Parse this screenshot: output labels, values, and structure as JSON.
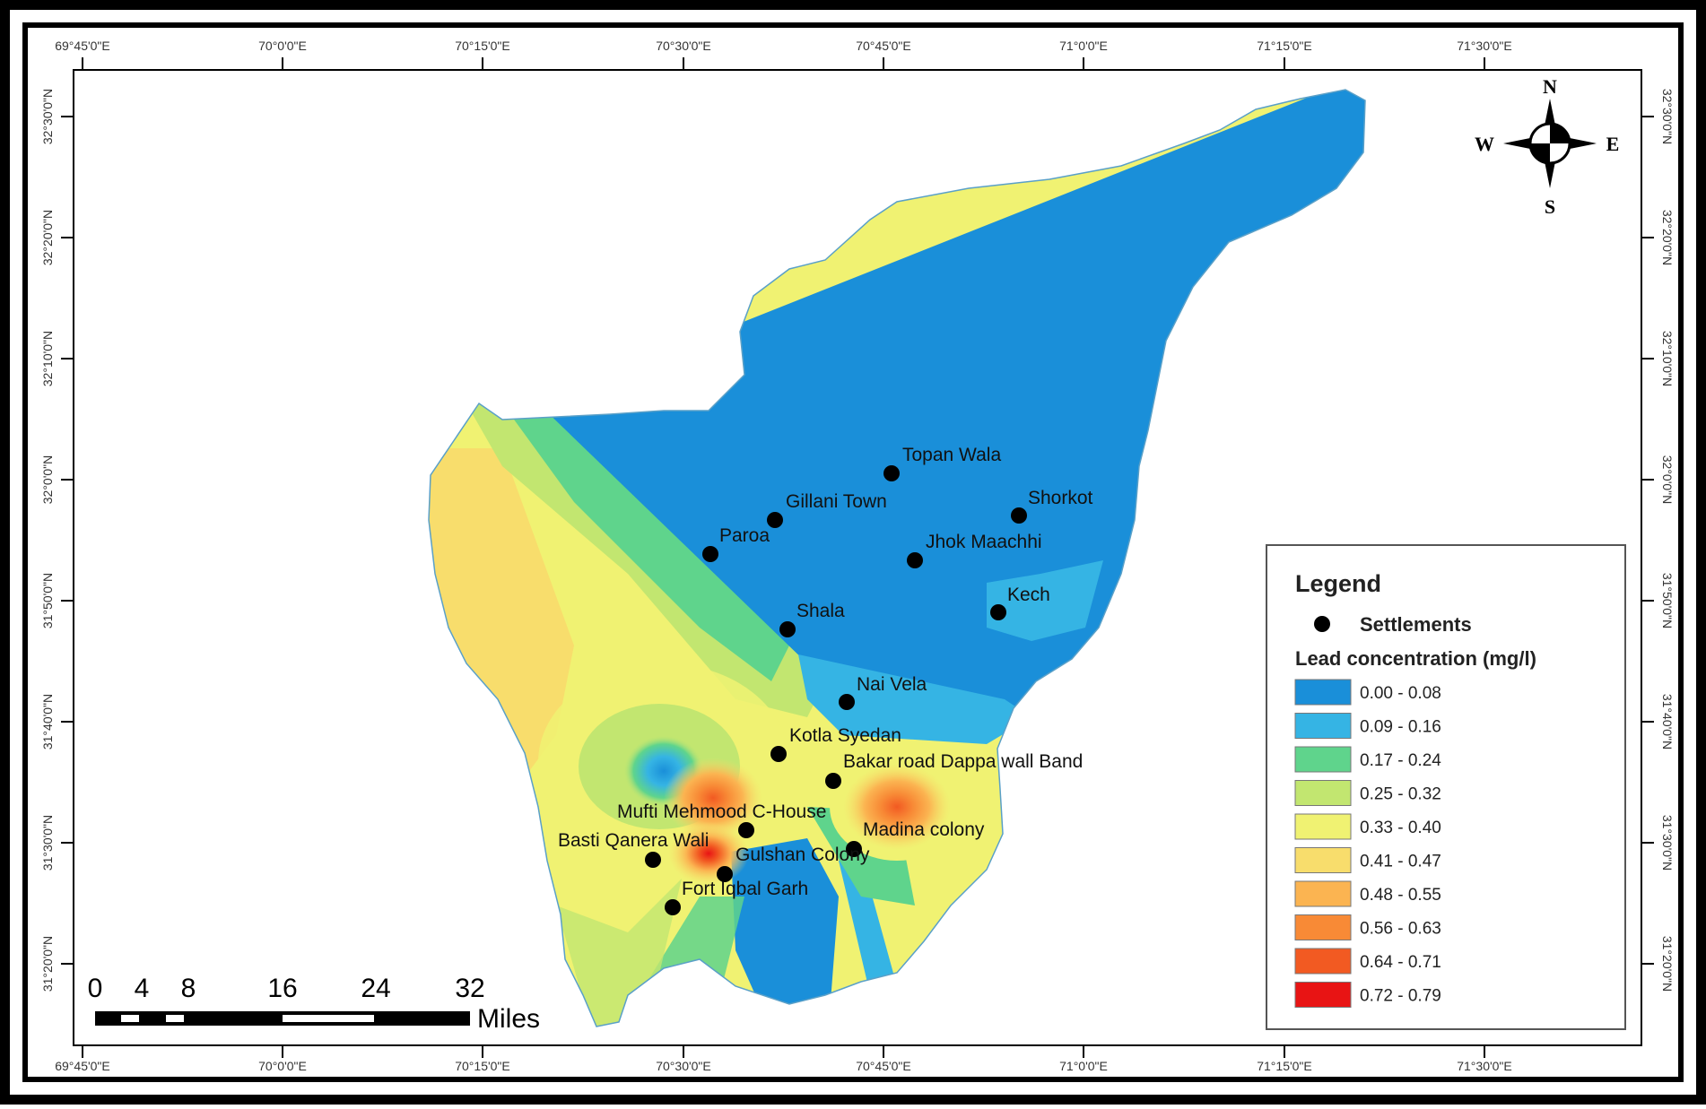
{
  "top_axis_labels": [
    "69°45'0\"E",
    "70°0'0\"E",
    "70°15'0\"E",
    "70°30'0\"E",
    "70°45'0\"E",
    "71°0'0\"E",
    "71°15'0\"E",
    "71°30'0\"E"
  ],
  "bottom_axis_labels": [
    "69°45'0\"E",
    "70°0'0\"E",
    "70°15'0\"E",
    "70°30'0\"E",
    "70°45'0\"E",
    "71°0'0\"E",
    "71°15'0\"E",
    "71°30'0\"E"
  ],
  "left_axis_labels": [
    "32°30'0\"N",
    "32°20'0\"N",
    "32°10'0\"N",
    "32°0'0\"N",
    "31°50'0\"N",
    "31°40'0\"N",
    "31°30'0\"N",
    "31°20'0\"N"
  ],
  "right_axis_labels": [
    "32°30'0\"N",
    "32°20'0\"N",
    "32°10'0\"N",
    "32°0'0\"N",
    "31°50'0\"N",
    "31°40'0\"N",
    "31°30'0\"N",
    "31°20'0\"N"
  ],
  "settlements": [
    "Topan Wala",
    "Gillani Town",
    "Shorkot",
    "Paroa",
    "Jhok Maachhi",
    "Kech",
    "Shala",
    "Nai Vela",
    "Kotla Syedan",
    "Bakar road Dappa wall Band",
    "Mufti Mehmood C-House",
    "Madina colony",
    "Basti Qanera Wali",
    "Gulshan Colony",
    "Fort Iqbal Garh"
  ],
  "legend": {
    "title": "Legend",
    "settlements_label": "Settlements",
    "concentration_title": "Lead concentration (mg/l)",
    "classes": [
      {
        "range": "0.00 - 0.08",
        "color": "#1a8fd9"
      },
      {
        "range": "0.09 - 0.16",
        "color": "#35b4e4"
      },
      {
        "range": "0.17 - 0.24",
        "color": "#5fd48c"
      },
      {
        "range": "0.25 - 0.32",
        "color": "#c2e670"
      },
      {
        "range": "0.33 - 0.40",
        "color": "#f0f272"
      },
      {
        "range": "0.41 - 0.47",
        "color": "#f8dd6c"
      },
      {
        "range": "0.48 - 0.55",
        "color": "#fbb451"
      },
      {
        "range": "0.56 - 0.63",
        "color": "#f88a36"
      },
      {
        "range": "0.64 - 0.71",
        "color": "#f25a22"
      },
      {
        "range": "0.72 - 0.79",
        "color": "#e81414"
      }
    ]
  },
  "compass": {
    "n": "N",
    "s": "S",
    "e": "E",
    "w": "W"
  },
  "scale_bar": {
    "ticks": [
      "0",
      "4",
      "8",
      "16",
      "24",
      "32"
    ],
    "unit": "Miles"
  }
}
